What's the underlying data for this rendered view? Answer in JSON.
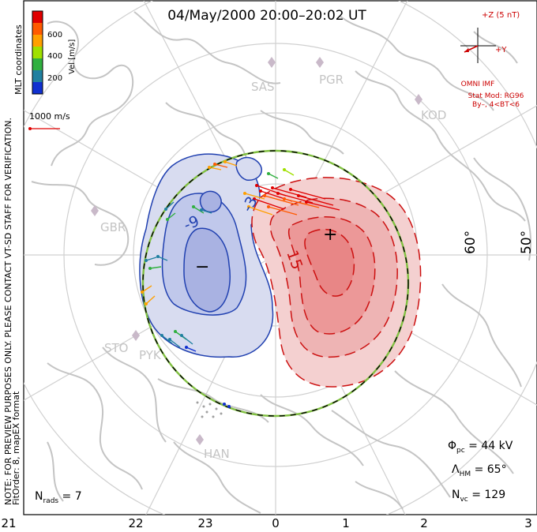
{
  "title": "04/May/2000 20:00–20:02 UT",
  "colorbar": {
    "ticks": [
      "600",
      "400",
      "200"
    ],
    "axis_label": "Vel [m/s]",
    "colors": [
      "#e00000",
      "#ff5a00",
      "#ffa000",
      "#a0e000",
      "#30b040",
      "#2080a0",
      "#1030d0"
    ]
  },
  "coordinates_label": "MLT coordinates",
  "scale_vector_label": "1000 m/s",
  "stations": [
    "SAS",
    "PGR",
    "KOD",
    "GBR",
    "STO",
    "PYK",
    "HAN"
  ],
  "lat_labels": [
    "60°",
    "50°"
  ],
  "mlt_ticks": [
    "21",
    "22",
    "23",
    "0",
    "1",
    "2",
    "3"
  ],
  "imf": {
    "z_label": "+Z (5 nT)",
    "y_label": "+Y",
    "source": "OMNI IMF",
    "stat_model": "Stat Mod: RG96",
    "condition": "By–, 4<BT<6"
  },
  "contour_labels": [
    "-9",
    "-3",
    "15",
    "3"
  ],
  "extrema": {
    "min": "−",
    "max": "+"
  },
  "side_note": "NOTE: FOR PREVIEW PURPOSES ONLY. PLEASE CONTACT VT-SD STAFF FOR VERIFICATION.",
  "fit_note": "FitOrder: 8, mapEX format",
  "stats": {
    "phi_label": "Φ",
    "phi_sub": "pc",
    "phi_value": " = 44 kV",
    "lambda_label": "Λ",
    "lambda_sub": "HM",
    "lambda_value": " = 65°",
    "nvc_label": "N",
    "nvc_sub": "vc",
    "nvc_value": " = 129",
    "nrads_label": "N",
    "nrads_sub": "rads",
    "nrads_value": " = 7"
  },
  "palette": {
    "negative_fill": "#d8dcf0",
    "negative_fill_inner": "#a9b2e2",
    "negative_line": "#2040b0",
    "positive_fill": "#f4d0d0",
    "positive_fill_inner": "#ec9898",
    "positive_line": "#cc1010",
    "coast": "#c8c8c8",
    "grid": "#d0d0d0",
    "boundary_green": "#80c040"
  }
}
